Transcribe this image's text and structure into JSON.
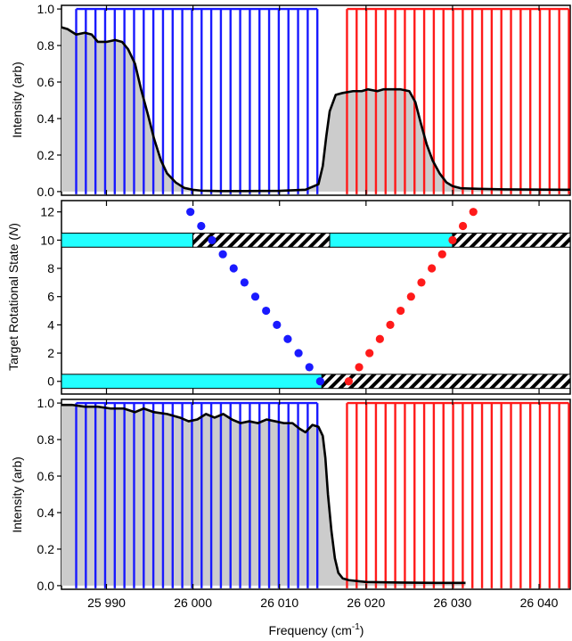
{
  "figure": {
    "xlabel": "Frequency (cm",
    "xlabel_sup": "-1",
    "xlabel_close": ")",
    "x_ticks": [
      "25 990",
      "26 000",
      "26 010",
      "26 020",
      "26 030",
      "26 040"
    ],
    "colors": {
      "blue": "#1a1aff",
      "red": "#ff1a1a",
      "cyan": "#22ffff",
      "gray": "#cccccc",
      "black": "#000000"
    }
  },
  "chart_data": [
    {
      "panel": "top",
      "type": "line",
      "ylabel": "Intensity (arb)",
      "ylim": [
        -0.02,
        1.02
      ],
      "xlim": [
        25984.8,
        26043.6
      ],
      "y_ticks": [
        "0.0",
        "0.2",
        "0.4",
        "0.6",
        "0.8",
        "1.0"
      ],
      "series": [
        {
          "kind": "filled-line",
          "x": [
            25984.8,
            25985.5,
            25986.5,
            25987.5,
            25988.3,
            25989.0,
            25990.0,
            25991.0,
            25991.8,
            25992.5,
            25993.3,
            25994.0,
            25994.8,
            25995.5,
            25996.3,
            25997.0,
            25998.0,
            25999.0,
            26000.0,
            26001.0,
            26003.0,
            26006.0,
            26010.0,
            26013.0,
            26014.5,
            26015.0,
            26015.4,
            26015.8,
            26016.5,
            26017.3,
            26018.5,
            26019.5,
            26020.2,
            26021.3,
            26022.0,
            26023.0,
            26024.0,
            26025.0,
            26025.7,
            26026.3,
            26027.0,
            26027.7,
            26028.5,
            26029.3,
            26030.0,
            26031.0,
            26033.0,
            26036.0,
            26043.6
          ],
          "y": [
            0.9,
            0.89,
            0.86,
            0.87,
            0.86,
            0.82,
            0.82,
            0.83,
            0.82,
            0.78,
            0.7,
            0.56,
            0.42,
            0.29,
            0.17,
            0.1,
            0.05,
            0.02,
            0.01,
            0.005,
            0.003,
            0.003,
            0.004,
            0.01,
            0.04,
            0.14,
            0.3,
            0.44,
            0.53,
            0.54,
            0.55,
            0.55,
            0.56,
            0.55,
            0.56,
            0.56,
            0.56,
            0.55,
            0.49,
            0.38,
            0.26,
            0.17,
            0.1,
            0.05,
            0.03,
            0.018,
            0.015,
            0.012,
            0.01
          ]
        }
      ],
      "combs": [
        {
          "color": "blue",
          "start": 25986.5,
          "step": 1.115,
          "end": 26015.0,
          "height": 1.0
        },
        {
          "color": "red",
          "start": 26017.8,
          "step": 1.115,
          "end": 26043.6,
          "height": 1.0
        }
      ]
    },
    {
      "panel": "middle",
      "type": "scatter",
      "ylabel": "Target Rotational State (N)",
      "ylabel_main": "Target Rotational State (",
      "ylabel_var": "N",
      "ylabel_close": ")",
      "ylim": [
        -0.9,
        12.8
      ],
      "xlim": [
        25984.8,
        26043.6
      ],
      "y_ticks": [
        "0",
        "2",
        "4",
        "6",
        "8",
        "10",
        "12"
      ],
      "series": [
        {
          "name": "blue",
          "x": [
            25999.7,
            26000.95,
            26002.2,
            26003.45,
            26004.7,
            26005.95,
            26007.2,
            26008.45,
            26009.7,
            26010.95,
            26012.2,
            26013.45,
            26014.7
          ],
          "y": [
            12,
            11,
            10,
            9,
            8,
            7,
            6,
            5,
            4,
            3,
            2,
            1,
            0
          ]
        },
        {
          "name": "red",
          "x": [
            26018.0,
            26019.2,
            26020.4,
            26021.6,
            26022.8,
            26024.0,
            26025.2,
            26026.4,
            26027.6,
            26028.8,
            26030.0,
            26031.2,
            26032.4
          ],
          "y": [
            0,
            1,
            2,
            3,
            4,
            5,
            6,
            7,
            8,
            9,
            10,
            11,
            12
          ]
        }
      ],
      "bands": [
        {
          "y": 10,
          "from": 25984.8,
          "to": 26000.0,
          "fill": "cyan"
        },
        {
          "y": 10,
          "from": 26000.0,
          "to": 26015.8,
          "fill": "hatched"
        },
        {
          "y": 10,
          "from": 26015.8,
          "to": 26030.0,
          "fill": "cyan"
        },
        {
          "y": 10,
          "from": 26030.0,
          "to": 26043.6,
          "fill": "hatched"
        },
        {
          "y": 0,
          "from": 25984.8,
          "to": 26014.9,
          "fill": "cyan"
        },
        {
          "y": 0,
          "from": 26014.9,
          "to": 26043.6,
          "fill": "hatched"
        }
      ]
    },
    {
      "panel": "bottom",
      "type": "line",
      "ylabel": "Intensity (arb)",
      "ylim": [
        -0.02,
        1.02
      ],
      "xlim": [
        25984.8,
        26043.6
      ],
      "y_ticks": [
        "0.0",
        "0.2",
        "0.4",
        "0.6",
        "0.8",
        "1.0"
      ],
      "series": [
        {
          "kind": "filled-line",
          "x": [
            25984.8,
            25986.0,
            25987.5,
            25989.0,
            25990.5,
            25992.0,
            25993.3,
            25994.3,
            25995.5,
            25997.0,
            25998.5,
            25999.5,
            26000.5,
            26001.5,
            26002.5,
            26003.5,
            26004.5,
            26005.5,
            26006.5,
            26007.5,
            26008.5,
            26009.5,
            26010.5,
            26011.5,
            26012.3,
            26013.0,
            26013.8,
            26014.5,
            26015.0,
            26015.3,
            26015.6,
            26016.0,
            26016.4,
            26016.8,
            26017.3,
            26018.0,
            26020.0,
            26024.0,
            26028.0,
            26031.5
          ],
          "y": [
            0.99,
            0.99,
            0.98,
            0.98,
            0.97,
            0.97,
            0.95,
            0.97,
            0.95,
            0.94,
            0.92,
            0.9,
            0.91,
            0.94,
            0.92,
            0.94,
            0.91,
            0.89,
            0.9,
            0.89,
            0.91,
            0.9,
            0.89,
            0.89,
            0.86,
            0.84,
            0.88,
            0.87,
            0.82,
            0.7,
            0.5,
            0.3,
            0.15,
            0.07,
            0.04,
            0.03,
            0.02,
            0.017,
            0.015,
            0.015
          ]
        }
      ],
      "combs": [
        {
          "color": "blue",
          "start": 25986.5,
          "step": 1.115,
          "end": 26015.0,
          "height": 1.0
        },
        {
          "color": "red",
          "start": 26017.8,
          "step": 1.115,
          "end": 26043.6,
          "height": 1.0
        }
      ]
    }
  ]
}
